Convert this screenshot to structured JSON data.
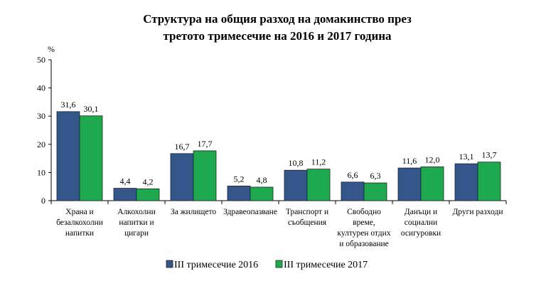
{
  "chart_data": {
    "type": "bar",
    "title_lines": [
      "Структура на общия разход на домакинство през",
      "третото тримесечие на 2016 и 2017 година"
    ],
    "ylabel": "%",
    "ylim": [
      0,
      50
    ],
    "yticks": [
      "0",
      "10",
      "20",
      "30",
      "40",
      "50"
    ],
    "categories": [
      [
        "Храна и",
        "безалкохолни",
        "напитки"
      ],
      [
        "Алкохолни",
        "напитки и",
        "цигари"
      ],
      [
        "За жилището"
      ],
      [
        "Здравеопазване"
      ],
      [
        "Транспорт и",
        "съобщения"
      ],
      [
        "Свободно",
        "време,",
        "културен отдих",
        "и образование"
      ],
      [
        "Данъци и",
        "социални",
        "осигуровки"
      ],
      [
        "Други разходи"
      ]
    ],
    "series": [
      {
        "name": "III тримесечие 2016",
        "color": "#34568b",
        "values": [
          31.6,
          4.4,
          16.7,
          5.2,
          10.8,
          6.6,
          11.6,
          13.1
        ],
        "labels": [
          "31,6",
          "4,4",
          "16,7",
          "5,2",
          "10,8",
          "6,6",
          "11,6",
          "13,1"
        ]
      },
      {
        "name": "III  тримесечие 2017",
        "color": "#1fa94f",
        "values": [
          30.1,
          4.2,
          17.7,
          4.8,
          11.2,
          6.3,
          12.0,
          13.7
        ],
        "labels": [
          "30,1",
          "4,2",
          "17,7",
          "4,8",
          "11,2",
          "6,3",
          "12,0",
          "13,7"
        ]
      }
    ],
    "legend_position": "bottom",
    "grid": false
  }
}
